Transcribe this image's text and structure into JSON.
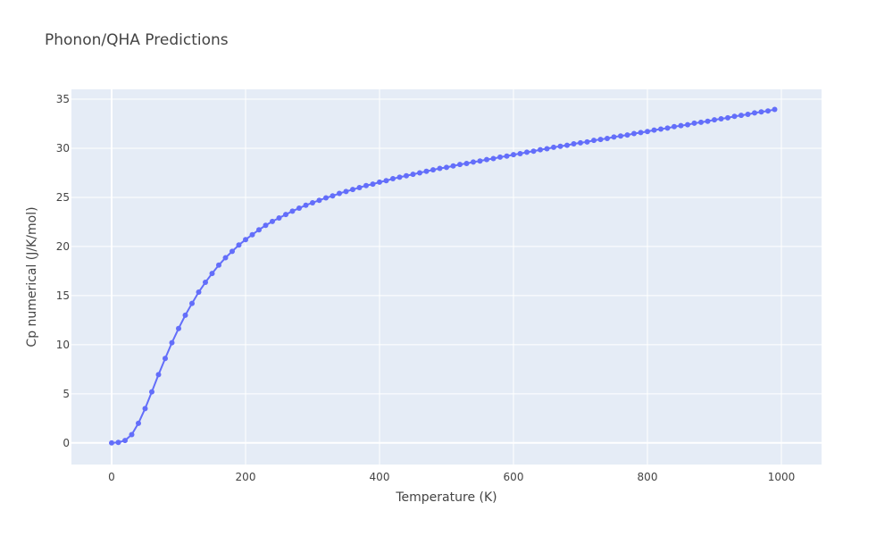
{
  "chart_data": {
    "type": "line",
    "title": "Phonon/QHA Predictions",
    "xlabel": "Temperature (K)",
    "ylabel": "Cp numerical (J/K/mol)",
    "xlim": [
      -60,
      1060
    ],
    "ylim": [
      -2.2,
      36
    ],
    "xticks": [
      0,
      200,
      400,
      600,
      800,
      1000
    ],
    "yticks": [
      0,
      5,
      10,
      15,
      20,
      25,
      30,
      35
    ],
    "grid": true,
    "colors": {
      "series": "#636efa",
      "plot_bg": "#e5ecf6"
    },
    "series": [
      {
        "mode": "lines+markers",
        "x": [
          0,
          10,
          20,
          30,
          40,
          50,
          60,
          70,
          80,
          90,
          100,
          110,
          120,
          130,
          140,
          150,
          160,
          170,
          180,
          190,
          200,
          210,
          220,
          230,
          240,
          250,
          260,
          270,
          280,
          290,
          300,
          310,
          320,
          330,
          340,
          350,
          360,
          370,
          380,
          390,
          400,
          410,
          420,
          430,
          440,
          450,
          460,
          470,
          480,
          490,
          500,
          510,
          520,
          530,
          540,
          550,
          560,
          570,
          580,
          590,
          600,
          610,
          620,
          630,
          640,
          650,
          660,
          670,
          680,
          690,
          700,
          710,
          720,
          730,
          740,
          750,
          760,
          770,
          780,
          790,
          800,
          810,
          820,
          830,
          840,
          850,
          860,
          870,
          880,
          890,
          900,
          910,
          920,
          930,
          940,
          950,
          960,
          970,
          980,
          990
        ],
        "y": [
          0,
          0.05,
          0.25,
          0.85,
          2.0,
          3.5,
          5.2,
          6.95,
          8.6,
          10.2,
          11.65,
          13.0,
          14.2,
          15.35,
          16.35,
          17.25,
          18.1,
          18.85,
          19.5,
          20.15,
          20.7,
          21.2,
          21.7,
          22.15,
          22.55,
          22.9,
          23.25,
          23.6,
          23.9,
          24.2,
          24.45,
          24.7,
          24.95,
          25.15,
          25.4,
          25.6,
          25.8,
          26.0,
          26.2,
          26.35,
          26.55,
          26.7,
          26.9,
          27.05,
          27.2,
          27.35,
          27.5,
          27.65,
          27.8,
          27.95,
          28.05,
          28.2,
          28.35,
          28.45,
          28.6,
          28.7,
          28.85,
          28.95,
          29.1,
          29.2,
          29.35,
          29.45,
          29.6,
          29.7,
          29.85,
          29.95,
          30.1,
          30.2,
          30.3,
          30.45,
          30.55,
          30.65,
          30.8,
          30.9,
          31.0,
          31.15,
          31.25,
          31.35,
          31.5,
          31.6,
          31.7,
          31.85,
          31.95,
          32.05,
          32.2,
          32.3,
          32.4,
          32.55,
          32.65,
          32.75,
          32.9,
          33.0,
          33.1,
          33.25,
          33.35,
          33.45,
          33.6,
          33.7,
          33.8,
          33.95
        ]
      }
    ]
  }
}
